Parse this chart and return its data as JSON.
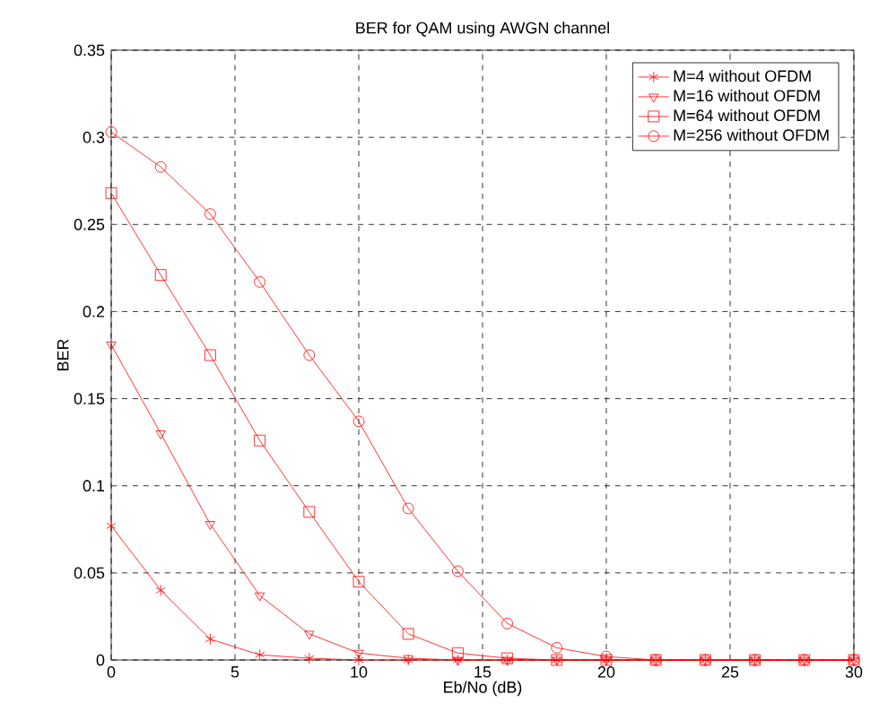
{
  "chart_data": {
    "type": "line",
    "title": "BER for QAM using AWGN channel",
    "xlabel": "Eb/No (dB)",
    "ylabel": "BER",
    "x": [
      0,
      2,
      4,
      6,
      8,
      10,
      12,
      14,
      16,
      18,
      20,
      22,
      24,
      26,
      28,
      30
    ],
    "series": [
      {
        "name": "M=4 without OFDM",
        "color": "#ff0000",
        "marker": "cross",
        "values": [
          0.077,
          0.04,
          0.012,
          0.003,
          0.001,
          0,
          0,
          0,
          0,
          0,
          0,
          0,
          0,
          0,
          0,
          0
        ]
      },
      {
        "name": "M=16 without OFDM",
        "color": "#ff0000",
        "marker": "triangle",
        "values": [
          0.181,
          0.13,
          0.078,
          0.037,
          0.015,
          0.004,
          0.001,
          0,
          0,
          0,
          0,
          0,
          0,
          0,
          0,
          0
        ]
      },
      {
        "name": "M=64 without OFDM",
        "color": "#ff0000",
        "marker": "square",
        "values": [
          0.268,
          0.221,
          0.175,
          0.126,
          0.085,
          0.045,
          0.015,
          0.004,
          0.001,
          0,
          0,
          0,
          0,
          0,
          0,
          0
        ]
      },
      {
        "name": "M=256 without OFDM",
        "color": "#ff0000",
        "marker": "circle",
        "values": [
          0.303,
          0.283,
          0.256,
          0.217,
          0.175,
          0.137,
          0.087,
          0.051,
          0.021,
          0.007,
          0.002,
          0,
          0,
          0,
          0,
          0
        ]
      }
    ],
    "xlim": [
      0,
      30
    ],
    "ylim": [
      0,
      0.35
    ],
    "xticks": [
      0,
      5,
      10,
      15,
      20,
      25,
      30
    ],
    "yticks": [
      0,
      0.05,
      0.1,
      0.15,
      0.2,
      0.25,
      0.3,
      0.35
    ],
    "grid": true,
    "legend": "top right",
    "line_style": "solid"
  }
}
